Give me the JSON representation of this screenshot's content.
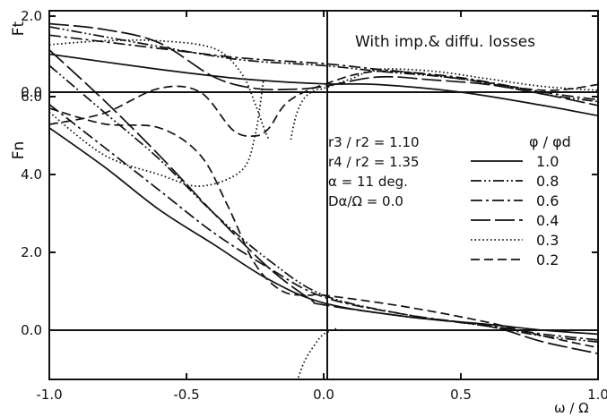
{
  "chart_data": {
    "type": "line",
    "annotation": "With imp.& diffu. losses",
    "xlabel": "ω / Ω",
    "xlim": [
      -1.0,
      1.0
    ],
    "x_ticks": [
      "-1.0",
      "-0.5",
      "0.0",
      "0.5",
      "1.0"
    ],
    "x_tick_values": [
      -1.0,
      -0.5,
      0.0,
      0.5,
      1.0
    ],
    "grid": false,
    "legend_position": "right",
    "legend_title": "φ / φd",
    "parameters": [
      "r3 / r2 = 1.10",
      "r4 / r2 = 1.35",
      "α = 11 deg.",
      "Dα/Ω = 0.0"
    ],
    "panels": [
      {
        "ylabel": "Ft",
        "ylim": [
          -1.35,
          3.0
        ],
        "y_ticks": [
          "2.0",
          "0.0"
        ],
        "y_tick_values": [
          2.0,
          0.0
        ],
        "series": [
          {
            "name": "1.0",
            "dash": "solid",
            "x": [
              -1.0,
              -0.6,
              -0.3,
              0.0,
              0.2,
              0.5,
              0.8,
              1.0
            ],
            "y": [
              1.0,
              0.6,
              0.35,
              0.22,
              0.2,
              0.0,
              -0.35,
              -0.62
            ]
          },
          {
            "name": "0.8",
            "dash": "dashdotdot",
            "x": [
              -1.0,
              -0.6,
              -0.3,
              0.0,
              0.2,
              0.5,
              0.8,
              1.0
            ],
            "y": [
              1.72,
              1.2,
              0.85,
              0.7,
              0.55,
              0.35,
              -0.05,
              -0.25
            ]
          },
          {
            "name": "0.6",
            "dash": "dashdot",
            "x": [
              -1.0,
              -0.6,
              -0.3,
              0.0,
              0.2,
              0.5,
              0.8,
              1.0
            ],
            "y": [
              1.5,
              1.15,
              0.9,
              0.75,
              0.6,
              0.38,
              0.0,
              -0.2
            ]
          },
          {
            "name": "0.4",
            "dash": "longdash",
            "x": [
              -1.0,
              -0.8,
              -0.6,
              -0.4,
              -0.25,
              -0.1,
              0.0,
              0.2,
              0.4,
              0.6,
              0.8,
              1.0
            ],
            "y": [
              1.8,
              1.65,
              1.3,
              0.4,
              0.1,
              0.08,
              0.15,
              0.4,
              0.32,
              0.2,
              -0.05,
              -0.35
            ]
          },
          {
            "name": "0.3",
            "dash": "dotted",
            "x": [
              -1.0,
              -0.8,
              -0.6,
              -0.4,
              -0.3,
              -0.25,
              -0.22,
              -0.2
            ],
            "y": [
              1.25,
              1.35,
              1.35,
              1.15,
              0.5,
              -0.3,
              -0.9,
              -1.25
            ]
          },
          {
            "name": "0.3",
            "dash": "dotted",
            "x": [
              -0.12,
              -0.1,
              -0.07,
              -0.03,
              0.0,
              0.1,
              0.2,
              0.4,
              0.6,
              0.8,
              1.0
            ],
            "y": [
              -1.25,
              -0.6,
              -0.15,
              0.05,
              0.1,
              0.35,
              0.6,
              0.55,
              0.35,
              0.15,
              0.05
            ]
          },
          {
            "name": "0.2",
            "dash": "dashed",
            "x": [
              -1.0,
              -0.8,
              -0.6,
              -0.45,
              -0.33,
              -0.25,
              -0.2,
              -0.13,
              0.0,
              0.2,
              0.5,
              0.8,
              1.0
            ],
            "y": [
              -0.85,
              -0.55,
              0.1,
              0.0,
              -1.0,
              -1.15,
              -0.95,
              -0.25,
              0.2,
              0.55,
              0.35,
              0.05,
              0.2
            ]
          }
        ]
      },
      {
        "ylabel": "Fn",
        "ylim": [
          -2.0,
          8.0
        ],
        "y_ticks": [
          "6.0",
          "4.0",
          "2.0",
          "0.0"
        ],
        "y_tick_values": [
          6.0,
          4.0,
          2.0,
          0.0
        ],
        "series": [
          {
            "name": "1.0",
            "dash": "solid",
            "x": [
              -1.0,
              -0.8,
              -0.6,
              -0.4,
              -0.2,
              0.0,
              0.3,
              0.6,
              0.8,
              1.0
            ],
            "y": [
              5.2,
              4.2,
              3.1,
              2.2,
              1.3,
              0.7,
              0.35,
              0.15,
              0.0,
              -0.1
            ]
          },
          {
            "name": "0.8",
            "dash": "dashdotdot",
            "x": [
              -1.0,
              -0.8,
              -0.6,
              -0.4,
              -0.2,
              0.0,
              0.3,
              0.6,
              0.8,
              1.0
            ],
            "y": [
              6.8,
              5.6,
              4.4,
              3.0,
              1.8,
              0.9,
              0.4,
              0.1,
              -0.15,
              -0.3
            ]
          },
          {
            "name": "0.6",
            "dash": "dashdot",
            "x": [
              -1.0,
              -0.8,
              -0.6,
              -0.4,
              -0.2,
              0.0,
              0.3,
              0.6,
              0.8,
              1.0
            ],
            "y": [
              5.8,
              4.7,
              3.6,
              2.5,
              1.6,
              0.85,
              0.4,
              0.12,
              -0.1,
              -0.25
            ]
          },
          {
            "name": "0.4",
            "dash": "longdash",
            "x": [
              -1.0,
              -0.8,
              -0.6,
              -0.4,
              -0.2,
              -0.05,
              0.0,
              0.3,
              0.6,
              0.8,
              1.0
            ],
            "y": [
              7.2,
              5.9,
              4.5,
              3.0,
              1.6,
              0.8,
              0.65,
              0.35,
              0.1,
              -0.3,
              -0.6
            ]
          },
          {
            "name": "0.3",
            "dash": "dotted",
            "x": [
              -1.0,
              -0.8,
              -0.6,
              -0.45,
              -0.3,
              -0.25,
              -0.22
            ],
            "y": [
              5.6,
              4.5,
              4.0,
              3.7,
              4.1,
              5.0,
              6.4
            ]
          },
          {
            "name": "0.3",
            "dash": "dotted",
            "x": [
              -0.12,
              -0.1,
              -0.07,
              -0.03,
              0.0,
              0.05
            ],
            "y": [
              -2.0,
              -1.4,
              -0.8,
              -0.35,
              -0.1,
              0.05
            ]
          },
          {
            "name": "0.2",
            "dash": "dashed",
            "x": [
              -1.0,
              -0.8,
              -0.6,
              -0.45,
              -0.35,
              -0.25,
              -0.15,
              -0.05,
              0.0,
              0.3,
              0.6,
              0.8,
              1.0
            ],
            "y": [
              5.7,
              5.3,
              5.2,
              4.5,
              3.2,
              1.7,
              1.0,
              0.9,
              0.9,
              0.6,
              0.2,
              -0.15,
              -0.45
            ]
          }
        ]
      }
    ],
    "legend": [
      {
        "label": "1.0",
        "dash": "solid"
      },
      {
        "label": "0.8",
        "dash": "dashdotdot"
      },
      {
        "label": "0.6",
        "dash": "dashdot"
      },
      {
        "label": "0.4",
        "dash": "longdash"
      },
      {
        "label": "0.3",
        "dash": "dotted"
      },
      {
        "label": "0.2",
        "dash": "dashed"
      }
    ]
  }
}
